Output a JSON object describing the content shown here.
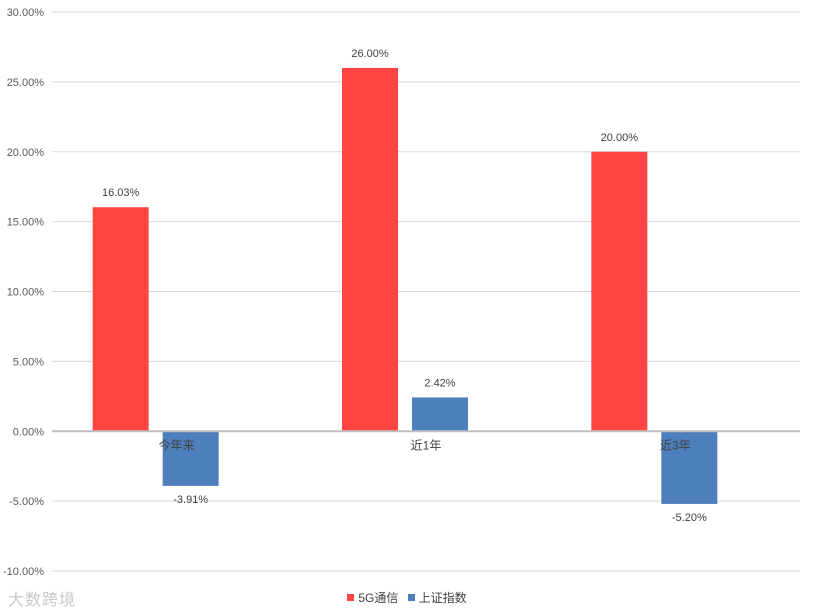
{
  "chart_data": {
    "type": "bar",
    "categories": [
      "今年来",
      "近1年",
      "近3年"
    ],
    "series": [
      {
        "name": "5G通信",
        "color": "#ff4444",
        "values": [
          16.03,
          26.0,
          20.0
        ],
        "labels": [
          "16.03%",
          "26.00%",
          "20.00%"
        ]
      },
      {
        "name": "上证指数",
        "color": "#4e7fbd",
        "values": [
          -3.91,
          2.42,
          -5.2
        ],
        "labels": [
          "-3.91%",
          "2.42%",
          "-5.20%"
        ]
      }
    ],
    "ylim": [
      -10,
      30
    ],
    "yticks": [
      30,
      25,
      20,
      15,
      10,
      5,
      0,
      -5,
      -10
    ],
    "ytick_labels": [
      "30.00%",
      "25.00%",
      "20.00%",
      "15.00%",
      "10.00%",
      "5.00%",
      "0.00%",
      "-5.00%",
      "-10.00%"
    ],
    "grid": true,
    "legend_position": "bottom"
  },
  "watermark": "大数跨境"
}
